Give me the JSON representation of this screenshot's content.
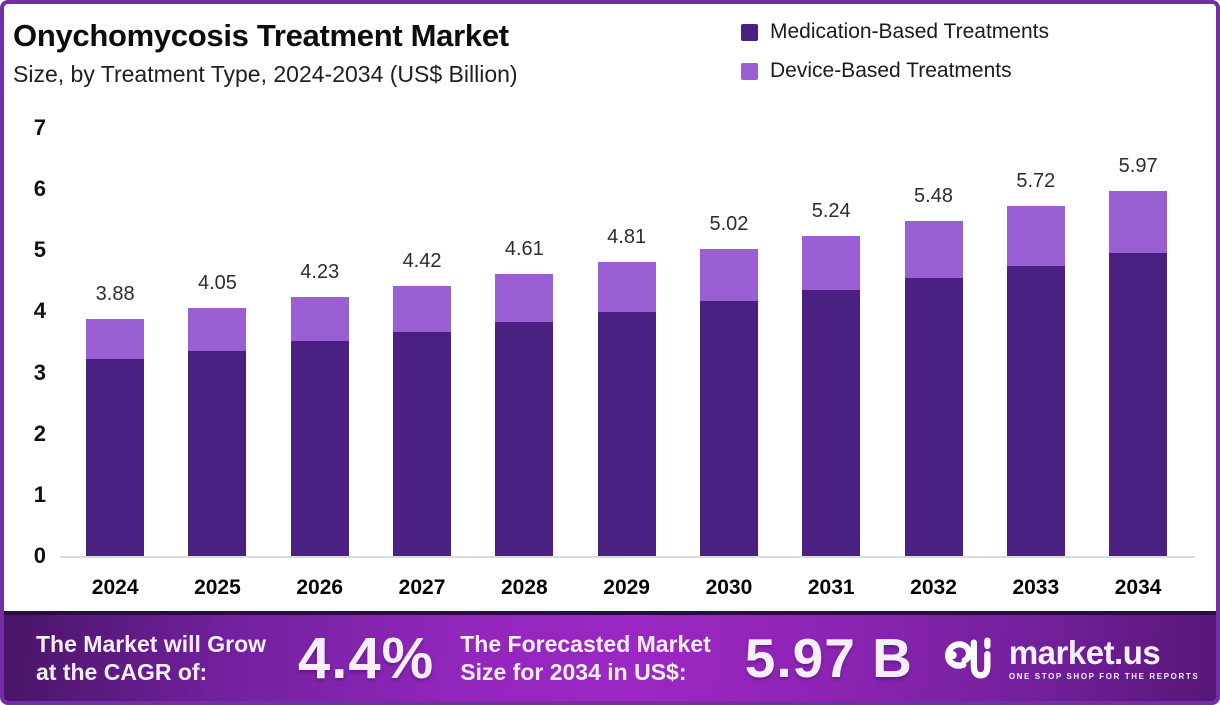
{
  "header": {
    "title": "Onychomycosis Treatment Market",
    "subtitle": "Size, by Treatment Type, 2024-2034 (US$ Billion)"
  },
  "legend": {
    "items": [
      {
        "label": "Medication-Based Treatments",
        "color": "#4a2182"
      },
      {
        "label": "Device-Based Treatments",
        "color": "#9a5fd3"
      }
    ]
  },
  "chart_data": {
    "type": "bar",
    "stacked": true,
    "title": "Onychomycosis Treatment Market",
    "subtitle": "Size, by Treatment Type, 2024-2034 (US$ Billion)",
    "unit": "US$ Billion",
    "categories": [
      "2024",
      "2025",
      "2026",
      "2027",
      "2028",
      "2029",
      "2030",
      "2031",
      "2032",
      "2033",
      "2034"
    ],
    "series": [
      {
        "name": "Medication-Based Treatments",
        "color": "#4a2182",
        "values": [
          3.22,
          3.36,
          3.51,
          3.67,
          3.83,
          3.99,
          4.17,
          4.35,
          4.55,
          4.75,
          4.96
        ]
      },
      {
        "name": "Device-Based Treatments",
        "color": "#9a5fd3",
        "values": [
          0.66,
          0.69,
          0.72,
          0.75,
          0.78,
          0.82,
          0.85,
          0.89,
          0.93,
          0.97,
          1.01
        ]
      }
    ],
    "totals": [
      3.88,
      4.05,
      4.23,
      4.42,
      4.61,
      4.81,
      5.02,
      5.24,
      5.48,
      5.72,
      5.97
    ],
    "total_labels": [
      "3.88",
      "4.05",
      "4.23",
      "4.42",
      "4.61",
      "4.81",
      "5.02",
      "5.24",
      "5.48",
      "5.72",
      "5.97"
    ],
    "ylim": [
      0,
      7
    ],
    "yticks": [
      0,
      1,
      2,
      3,
      4,
      5,
      6,
      7
    ],
    "grid": false,
    "legend_position": "top-right"
  },
  "banner": {
    "cagr_label_line1": "The Market will Grow",
    "cagr_label_line2": "at the CAGR of:",
    "cagr_value": "4.4%",
    "forecast_label_line1": "The Forecasted Market",
    "forecast_label_line2": "Size for 2034 in US$:",
    "forecast_value": "5.97 B",
    "brand_name": "market.us",
    "brand_tagline": "ONE STOP SHOP FOR THE REPORTS"
  }
}
